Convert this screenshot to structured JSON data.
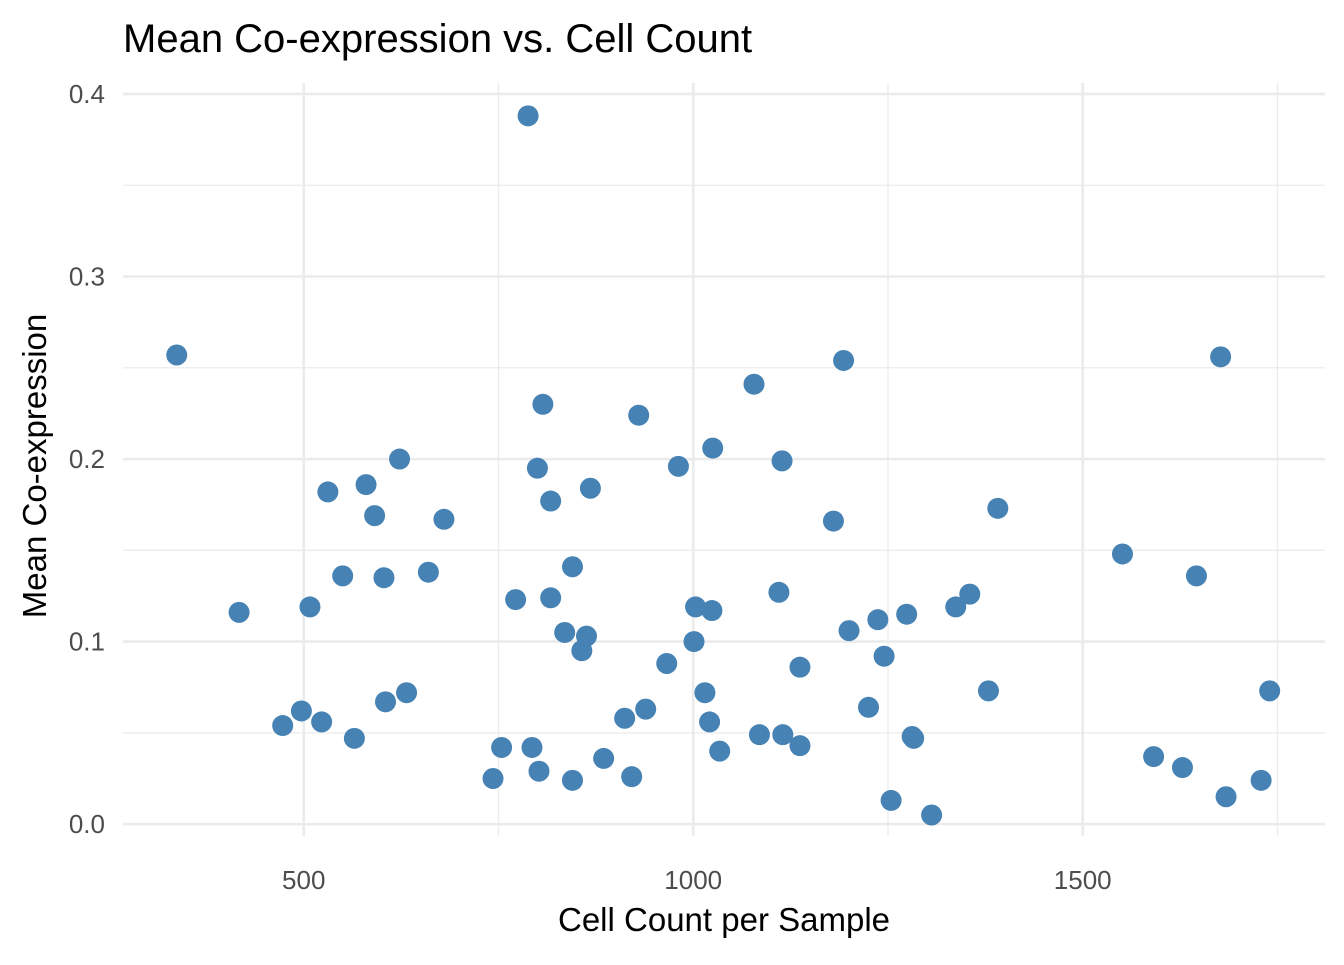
{
  "chart_data": {
    "type": "scatter",
    "title": "Mean Co-expression vs. Cell Count",
    "xlabel": "Cell Count per Sample",
    "ylabel": "Mean Co-expression",
    "xlim": [
      268,
      1811
    ],
    "ylim": [
      -0.0065,
      0.406
    ],
    "xticks": [
      500,
      1000,
      1500
    ],
    "xtick_labels": [
      "500",
      "1000",
      "1500"
    ],
    "xminor": [
      750,
      1250,
      1750
    ],
    "yticks": [
      0,
      0.1,
      0.2,
      0.3,
      0.4
    ],
    "ytick_labels": [
      "0.0",
      "0.1",
      "0.2",
      "0.3",
      "0.4"
    ],
    "yminor": [
      0.05,
      0.15,
      0.25,
      0.35
    ],
    "grid": true,
    "point_color": "#4682B4",
    "grid_color": "#EBEBEB",
    "points": [
      [
        337,
        0.257
      ],
      [
        788,
        0.388
      ],
      [
        417,
        0.116
      ],
      [
        473,
        0.054
      ],
      [
        497,
        0.062
      ],
      [
        508,
        0.119
      ],
      [
        523,
        0.056
      ],
      [
        531,
        0.182
      ],
      [
        550,
        0.136
      ],
      [
        565,
        0.047
      ],
      [
        580,
        0.186
      ],
      [
        591,
        0.169
      ],
      [
        603,
        0.135
      ],
      [
        605,
        0.067
      ],
      [
        623,
        0.2
      ],
      [
        632,
        0.072
      ],
      [
        660,
        0.138
      ],
      [
        680,
        0.167
      ],
      [
        743,
        0.025
      ],
      [
        754,
        0.042
      ],
      [
        772,
        0.123
      ],
      [
        793,
        0.042
      ],
      [
        800,
        0.195
      ],
      [
        802,
        0.029
      ],
      [
        807,
        0.23
      ],
      [
        817,
        0.124
      ],
      [
        817,
        0.177
      ],
      [
        835,
        0.105
      ],
      [
        845,
        0.141
      ],
      [
        845,
        0.024
      ],
      [
        857,
        0.095
      ],
      [
        863,
        0.103
      ],
      [
        868,
        0.184
      ],
      [
        885,
        0.036
      ],
      [
        912,
        0.058
      ],
      [
        921,
        0.026
      ],
      [
        930,
        0.224
      ],
      [
        939,
        0.063
      ],
      [
        966,
        0.088
      ],
      [
        981,
        0.196
      ],
      [
        1001,
        0.1
      ],
      [
        1003,
        0.119
      ],
      [
        1015,
        0.072
      ],
      [
        1021,
        0.056
      ],
      [
        1024,
        0.117
      ],
      [
        1025,
        0.206
      ],
      [
        1034,
        0.04
      ],
      [
        1078,
        0.241
      ],
      [
        1085,
        0.049
      ],
      [
        1110,
        0.127
      ],
      [
        1114,
        0.199
      ],
      [
        1115,
        0.049
      ],
      [
        1137,
        0.043
      ],
      [
        1137,
        0.086
      ],
      [
        1180,
        0.166
      ],
      [
        1193,
        0.254
      ],
      [
        1200,
        0.106
      ],
      [
        1225,
        0.064
      ],
      [
        1237,
        0.112
      ],
      [
        1245,
        0.092
      ],
      [
        1254,
        0.013
      ],
      [
        1274,
        0.115
      ],
      [
        1281,
        0.048
      ],
      [
        1283,
        0.047
      ],
      [
        1306,
        0.005
      ],
      [
        1337,
        0.119
      ],
      [
        1355,
        0.126
      ],
      [
        1379,
        0.073
      ],
      [
        1391,
        0.173
      ],
      [
        1551,
        0.148
      ],
      [
        1591,
        0.037
      ],
      [
        1628,
        0.031
      ],
      [
        1646,
        0.136
      ],
      [
        1677,
        0.256
      ],
      [
        1684,
        0.015
      ],
      [
        1729,
        0.024
      ],
      [
        1740,
        0.073
      ]
    ]
  }
}
